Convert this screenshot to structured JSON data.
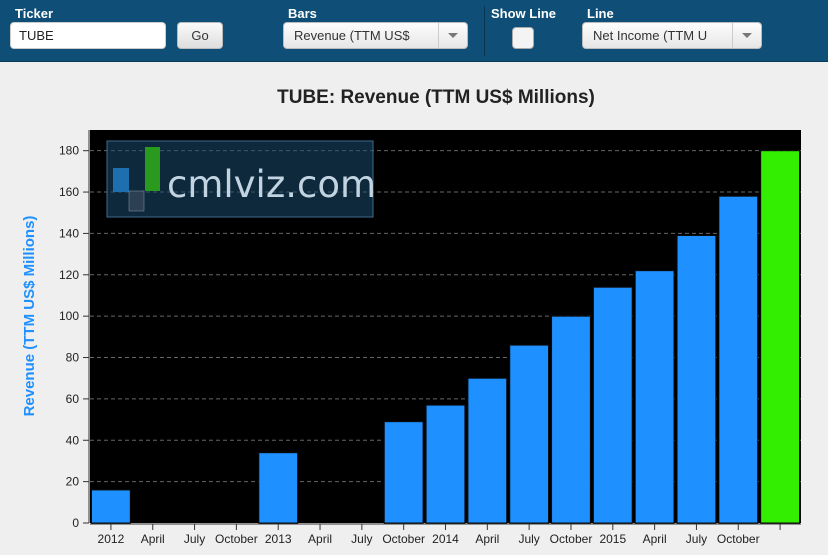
{
  "toolbar": {
    "ticker_label": "Ticker",
    "ticker_value": "TUBE",
    "go_label": "Go",
    "bars_label": "Bars",
    "bars_selected": "Revenue (TTM US$",
    "show_line_label": "Show Line",
    "line_label": "Line",
    "line_selected": "Net Income (TTM U"
  },
  "watermark": {
    "text": "cmlviz.com"
  },
  "colors": {
    "toolbar_bg": "#0f4f77",
    "bar_blue": "#1e90ff",
    "bar_green": "#33ee00",
    "plot_bg": "#000000",
    "ylabel_color": "#1e90ff"
  },
  "chart_data": {
    "type": "bar",
    "title": "TUBE: Revenue (TTM US$ Millions)",
    "xlabel": "",
    "ylabel": "Revenue (TTM US$ Millions)",
    "ylim": [
      0,
      190
    ],
    "yticks": [
      0,
      20,
      40,
      60,
      80,
      100,
      120,
      140,
      160,
      180
    ],
    "grid": true,
    "categories": [
      "2012",
      "April",
      "July",
      "October",
      "2013",
      "April",
      "July",
      "October",
      "2014",
      "April",
      "July",
      "October",
      "2015",
      "April",
      "July",
      "October",
      ""
    ],
    "values": [
      16,
      null,
      null,
      null,
      34,
      null,
      null,
      49,
      57,
      70,
      86,
      100,
      114,
      122,
      139,
      158,
      180
    ],
    "highlight_index": 16
  }
}
